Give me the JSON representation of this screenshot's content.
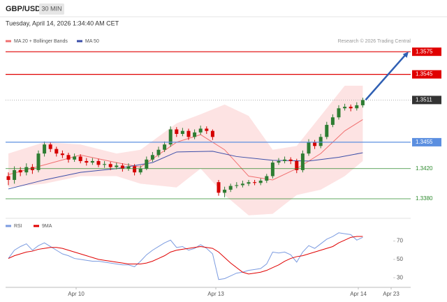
{
  "header": {
    "symbol": "GBP/USD",
    "interval": "30 MIN",
    "datetime": "Tuesday, April 14, 2026 1:34:40 AM CET"
  },
  "credit": "Research © 2026 Trading Central",
  "x_axis": {
    "labels": [
      "Apr 10",
      "Apr 13",
      "Apr 14",
      "Apr 23"
    ]
  },
  "chart_data": [
    {
      "type": "candlestick",
      "up_color": "#2e7d32",
      "down_color": "#d50000",
      "ylim": [
        1.3355,
        1.3602
      ],
      "open": [
        1.341,
        1.3405,
        1.3418,
        1.3415,
        1.3422,
        1.3418,
        1.344,
        1.3452,
        1.3446,
        1.344,
        1.3438,
        1.3432,
        1.3436,
        1.343,
        1.3428,
        1.343,
        1.3425,
        1.3426,
        1.3422,
        1.3424,
        1.342,
        1.3423,
        1.3415,
        1.342,
        1.3432,
        1.3438,
        1.3445,
        1.3452,
        1.3472,
        1.3466,
        1.347,
        1.3462,
        1.3468,
        1.3473,
        1.347,
        1.3402,
        1.3388,
        1.3392,
        1.3397,
        1.3398,
        1.34,
        1.3402,
        1.3401,
        1.3404,
        1.341,
        1.3428,
        1.343,
        1.3432,
        1.343,
        1.3418,
        1.344,
        1.3455,
        1.345,
        1.3462,
        1.3478,
        1.3488,
        1.35,
        1.3502,
        1.35,
        1.3504
      ],
      "high": [
        1.3415,
        1.3423,
        1.3422,
        1.3427,
        1.3426,
        1.3444,
        1.3456,
        1.3455,
        1.3449,
        1.3444,
        1.3441,
        1.344,
        1.3439,
        1.3434,
        1.3434,
        1.3433,
        1.343,
        1.3429,
        1.3428,
        1.3427,
        1.3427,
        1.3426,
        1.3424,
        1.3436,
        1.3442,
        1.3449,
        1.3456,
        1.3476,
        1.3475,
        1.3474,
        1.3473,
        1.3472,
        1.3477,
        1.3476,
        1.3472,
        1.3405,
        1.3396,
        1.34,
        1.3402,
        1.3404,
        1.3405,
        1.3405,
        1.3407,
        1.3413,
        1.3431,
        1.3434,
        1.3436,
        1.3435,
        1.3433,
        1.3444,
        1.3459,
        1.3458,
        1.3466,
        1.3482,
        1.3492,
        1.3504,
        1.3506,
        1.3505,
        1.3508,
        1.3514
      ],
      "low": [
        1.3398,
        1.34,
        1.341,
        1.3411,
        1.3413,
        1.3415,
        1.3436,
        1.3442,
        1.3436,
        1.3434,
        1.3428,
        1.3429,
        1.3427,
        1.3424,
        1.3425,
        1.3422,
        1.3421,
        1.3418,
        1.3419,
        1.3416,
        1.3417,
        1.3411,
        1.3412,
        1.3418,
        1.3429,
        1.3435,
        1.3442,
        1.3449,
        1.3462,
        1.3463,
        1.3458,
        1.3459,
        1.3465,
        1.3466,
        1.3458,
        1.3384,
        1.3382,
        1.3389,
        1.3394,
        1.3395,
        1.3397,
        1.3398,
        1.3398,
        1.3401,
        1.3407,
        1.3425,
        1.3427,
        1.3426,
        1.3414,
        1.3415,
        1.3437,
        1.3446,
        1.3447,
        1.3459,
        1.3475,
        1.3485,
        1.3497,
        1.3496,
        1.3497,
        1.3501
      ],
      "close": [
        1.3405,
        1.3418,
        1.3415,
        1.3422,
        1.3418,
        1.344,
        1.3452,
        1.3446,
        1.344,
        1.3438,
        1.3432,
        1.3436,
        1.343,
        1.3428,
        1.343,
        1.3425,
        1.3426,
        1.3422,
        1.3424,
        1.342,
        1.3423,
        1.3415,
        1.342,
        1.3432,
        1.3438,
        1.3445,
        1.3452,
        1.3472,
        1.3466,
        1.347,
        1.3462,
        1.3468,
        1.3473,
        1.347,
        1.3462,
        1.3388,
        1.3392,
        1.3397,
        1.3398,
        1.34,
        1.3402,
        1.3401,
        1.3404,
        1.341,
        1.3428,
        1.343,
        1.3432,
        1.343,
        1.3418,
        1.344,
        1.3455,
        1.345,
        1.3462,
        1.3478,
        1.3488,
        1.35,
        1.3502,
        1.35,
        1.3504,
        1.3511
      ],
      "overlays": [
        {
          "name": "MA 20 + Bollinger Bands",
          "color": "#f07070",
          "band_color": "#fde3e3",
          "x": [
            0,
            6,
            12,
            18,
            22,
            28,
            32,
            36,
            40,
            44,
            48,
            52,
            56,
            59
          ],
          "values": [
            1.3412,
            1.3425,
            1.3438,
            1.3428,
            1.3422,
            1.3455,
            1.3465,
            1.3445,
            1.341,
            1.3405,
            1.342,
            1.344,
            1.347,
            1.3485
          ],
          "upper": [
            1.344,
            1.3455,
            1.3452,
            1.344,
            1.3445,
            1.348,
            1.3492,
            1.3505,
            1.349,
            1.3445,
            1.345,
            1.349,
            1.353,
            1.353
          ],
          "lower": [
            1.3395,
            1.34,
            1.341,
            1.341,
            1.34,
            1.3395,
            1.342,
            1.3385,
            1.3358,
            1.336,
            1.3385,
            1.3392,
            1.341,
            1.343
          ]
        },
        {
          "name": "MA 50",
          "color": "#3b4ea8",
          "x": [
            0,
            6,
            12,
            18,
            24,
            28,
            34,
            38,
            44,
            50,
            55,
            59
          ],
          "values": [
            1.3393,
            1.3405,
            1.3415,
            1.342,
            1.3428,
            1.3442,
            1.3443,
            1.3436,
            1.3431,
            1.343,
            1.3435,
            1.3441
          ]
        }
      ],
      "levels": [
        {
          "price": 1.3575,
          "color": "#e00000",
          "box": true
        },
        {
          "price": 1.3545,
          "color": "#e00000",
          "box": true
        },
        {
          "price": 1.3511,
          "color": "#333333",
          "box": true,
          "dotted": true
        },
        {
          "price": 1.3455,
          "color": "#5b8fe0",
          "box": true
        },
        {
          "price": {
            "value": 1.342,
            "label": "1.3420"
          },
          "color": "#2e8b2e",
          "box": false
        },
        {
          "price": {
            "value": 1.338,
            "label": "1.3380"
          },
          "color": "#2e8b2e",
          "box": false
        }
      ]
    },
    {
      "type": "line",
      "ylim": [
        21,
        91
      ],
      "yticks": [
        30,
        50,
        70
      ],
      "series": [
        {
          "name": "RSI",
          "color": "#7b9be0",
          "values": [
            51,
            60,
            64,
            67,
            60,
            65,
            68,
            64,
            60,
            56,
            54,
            51,
            50,
            49,
            48,
            48,
            47,
            46,
            45,
            44,
            44,
            42,
            48,
            55,
            60,
            64,
            68,
            71,
            63,
            64,
            60,
            62,
            66,
            62,
            56,
            28,
            29,
            32,
            35,
            36,
            38,
            39,
            40,
            45,
            58,
            57,
            58,
            55,
            47,
            58,
            65,
            62,
            67,
            72,
            75,
            79,
            78,
            77,
            71,
            74
          ]
        },
        {
          "name": "9MA",
          "color": "#e00000",
          "values": [
            51,
            54,
            56,
            58,
            59,
            61,
            62,
            63,
            63,
            62,
            60,
            58,
            56,
            54,
            52,
            50,
            49,
            48,
            47,
            46,
            45,
            45,
            45,
            46,
            48,
            51,
            54,
            58,
            60,
            61,
            62,
            63,
            64,
            63,
            62,
            58,
            52,
            46,
            41,
            36,
            34,
            35,
            36,
            38,
            41,
            44,
            48,
            51,
            53,
            54,
            56,
            58,
            60,
            62,
            64,
            68,
            71,
            74,
            75,
            75
          ]
        }
      ]
    }
  ]
}
